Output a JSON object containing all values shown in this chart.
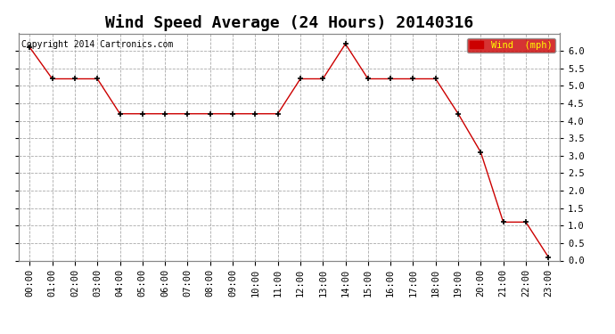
{
  "title": "Wind Speed Average (24 Hours) 20140316",
  "copyright": "Copyright 2014 Cartronics.com",
  "legend_label": "Wind  (mph)",
  "hours": [
    "00:00",
    "01:00",
    "02:00",
    "03:00",
    "04:00",
    "05:00",
    "06:00",
    "07:00",
    "08:00",
    "09:00",
    "10:00",
    "11:00",
    "12:00",
    "13:00",
    "14:00",
    "15:00",
    "16:00",
    "17:00",
    "18:00",
    "19:00",
    "20:00",
    "21:00",
    "22:00",
    "23:00"
  ],
  "values": [
    6.1,
    5.2,
    5.2,
    5.2,
    4.2,
    4.2,
    4.2,
    4.2,
    4.2,
    4.2,
    4.2,
    4.2,
    5.2,
    5.2,
    6.2,
    5.2,
    5.2,
    5.2,
    5.2,
    4.2,
    3.1,
    1.1,
    1.1,
    0.1
  ],
  "line_color": "#cc0000",
  "marker": "+",
  "marker_color": "#000000",
  "ylim": [
    0.0,
    6.5
  ],
  "yticks": [
    0.0,
    0.5,
    1.0,
    1.5,
    2.0,
    2.5,
    3.0,
    3.5,
    4.0,
    4.5,
    5.0,
    5.5,
    6.0
  ],
  "bg_color": "#ffffff",
  "plot_bg": "#ffffff",
  "grid_color": "#aaaaaa",
  "legend_bg": "#cc0000",
  "legend_text_color": "#ffff00",
  "title_fontsize": 13,
  "copyright_fontsize": 7,
  "tick_fontsize": 7.5,
  "marker_size": 5
}
